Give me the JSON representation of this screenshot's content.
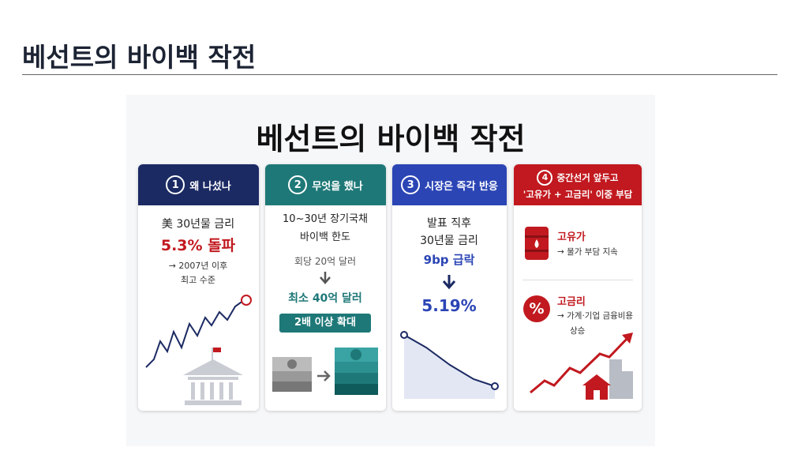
{
  "header": {
    "title": "베선트의 바이백 작전"
  },
  "infographic": {
    "title": "베선트의 바이백 작전",
    "cards": [
      {
        "number": "1",
        "heading": [
          "왜 나섰나"
        ],
        "lines": [
          "美 30년물 금리",
          "5.3% 돌파",
          "→ 2007년 이후",
          "최고 수준"
        ]
      },
      {
        "number": "2",
        "heading": [
          "무엇을 했나"
        ],
        "lines": [
          "10~30년 장기국채",
          "바이백 한도",
          "회당 20억 달러",
          "최소 40억 달러",
          "2배 이상 확대"
        ]
      },
      {
        "number": "3",
        "heading": [
          "시장은 즉각 반응"
        ],
        "lines": [
          "발표 직후",
          "30년물 금리",
          "9bp 급락",
          "5.19%"
        ]
      },
      {
        "number": "4",
        "heading": [
          "중간선거 앞두고",
          "'고유가 + 고금리' 이중 부담"
        ],
        "lines": [
          "고유가",
          "→ 물가 부담 지속",
          "%",
          "고금리",
          "→ 가계·기업 금융비용",
          "상승"
        ]
      }
    ]
  }
}
